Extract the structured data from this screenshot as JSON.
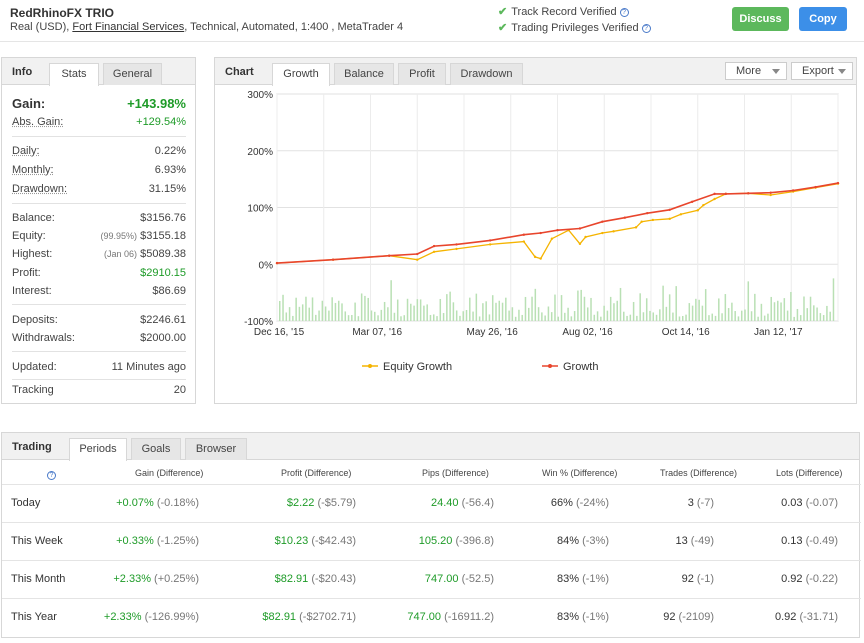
{
  "header": {
    "account_name": "RedRhinoFX TRIO",
    "account_type": "Real (USD),",
    "broker": "Fort Financial Services",
    "account_meta": ", Technical, Automated, 1:400 , MetaTrader 4",
    "verif_track": "Track Record Verified",
    "verif_privileges": "Trading Privileges Verified",
    "discuss_label": "Discuss",
    "copy_label": "Copy"
  },
  "info": {
    "title": "Info",
    "tabs": [
      "Stats",
      "General"
    ],
    "gain_label": "Gain:",
    "gain_value": "+143.98%",
    "abs_gain_label": "Abs. Gain:",
    "abs_gain_value": "+129.54%",
    "daily_label": "Daily:",
    "daily_value": "0.22%",
    "monthly_label": "Monthly:",
    "monthly_value": "6.93%",
    "drawdown_label": "Drawdown:",
    "drawdown_value": "31.15%",
    "balance_label": "Balance:",
    "balance_value": "$3156.76",
    "equity_label": "Equity:",
    "equity_note": "(99.95%)",
    "equity_value": "$3155.18",
    "highest_label": "Highest:",
    "highest_note": "(Jan 06)",
    "highest_value": "$5089.38",
    "profit_label": "Profit:",
    "profit_value": "$2910.15",
    "interest_label": "Interest:",
    "interest_value": "$86.69",
    "deposits_label": "Deposits:",
    "deposits_value": "$2246.61",
    "withdrawals_label": "Withdrawals:",
    "withdrawals_value": "$2000.00",
    "updated_label": "Updated:",
    "updated_value": "11 Minutes ago",
    "tracking_label": "Tracking",
    "tracking_value": "20"
  },
  "chart_panel": {
    "title": "Chart",
    "tabs": [
      "Growth",
      "Balance",
      "Profit",
      "Drawdown"
    ],
    "more_label": "More",
    "export_label": "Export"
  },
  "chart_data": {
    "type": "line",
    "ylim": [
      -100,
      300
    ],
    "yticks": [
      "300%",
      "200%",
      "100%",
      "0%",
      "-100%"
    ],
    "ytick_values": [
      300,
      200,
      100,
      0,
      -100
    ],
    "xticks": [
      "Dec 16, '15",
      "Mar 07, '16",
      "May 26, '16",
      "Aug 02, '16",
      "Oct 14, '16",
      "Jan 12, '17"
    ],
    "grid": true,
    "legend_placement": "bottom",
    "series": [
      {
        "name": "Equity Growth",
        "color": "#f5b400",
        "points": [
          [
            0,
            2
          ],
          [
            10,
            8
          ],
          [
            20,
            15
          ],
          [
            25,
            8
          ],
          [
            28,
            22
          ],
          [
            32,
            27
          ],
          [
            38,
            35
          ],
          [
            44,
            40
          ],
          [
            46,
            13
          ],
          [
            47,
            10
          ],
          [
            49,
            45
          ],
          [
            52,
            60
          ],
          [
            54,
            36
          ],
          [
            55,
            48
          ],
          [
            58,
            55
          ],
          [
            60,
            58
          ],
          [
            64,
            65
          ],
          [
            65,
            75
          ],
          [
            67,
            78
          ],
          [
            70,
            80
          ],
          [
            72,
            88
          ],
          [
            75,
            95
          ],
          [
            76,
            104
          ],
          [
            78,
            115
          ],
          [
            80,
            124
          ],
          [
            84,
            125
          ],
          [
            88,
            122
          ],
          [
            92,
            128
          ],
          [
            96,
            135
          ],
          [
            100,
            142
          ]
        ]
      },
      {
        "name": "Growth",
        "color": "#e8452c",
        "points": [
          [
            0,
            2
          ],
          [
            10,
            8
          ],
          [
            20,
            15
          ],
          [
            25,
            18
          ],
          [
            28,
            32
          ],
          [
            32,
            35
          ],
          [
            38,
            42
          ],
          [
            44,
            52
          ],
          [
            47,
            55
          ],
          [
            50,
            60
          ],
          [
            54,
            63
          ],
          [
            58,
            75
          ],
          [
            62,
            82
          ],
          [
            66,
            90
          ],
          [
            70,
            96
          ],
          [
            74,
            110
          ],
          [
            78,
            124
          ],
          [
            80,
            124
          ],
          [
            84,
            125
          ],
          [
            88,
            126
          ],
          [
            92,
            130
          ],
          [
            96,
            136
          ],
          [
            100,
            143
          ]
        ]
      }
    ]
  },
  "trading": {
    "title": "Trading",
    "tabs": [
      "Periods",
      "Goals",
      "Browser"
    ],
    "columns": [
      "Gain (Difference)",
      "Profit (Difference)",
      "Pips (Difference)",
      "Win % (Difference)",
      "Trades (Difference)",
      "Lots (Difference)"
    ],
    "rows": [
      {
        "period": "Today",
        "gain": "+0.07%",
        "gain_diff": "(-0.18%)",
        "profit": "$2.22",
        "profit_diff": "(-$5.79)",
        "pips": "24.40",
        "pips_diff": "(-56.4)",
        "win": "66%",
        "win_diff": "(-24%)",
        "trades": "3",
        "trades_diff": "(-7)",
        "lots": "0.03",
        "lots_diff": "(-0.07)"
      },
      {
        "period": "This Week",
        "gain": "+0.33%",
        "gain_diff": "(-1.25%)",
        "profit": "$10.23",
        "profit_diff": "(-$42.43)",
        "pips": "105.20",
        "pips_diff": "(-396.8)",
        "win": "84%",
        "win_diff": "(-3%)",
        "trades": "13",
        "trades_diff": "(-49)",
        "lots": "0.13",
        "lots_diff": "(-0.49)"
      },
      {
        "period": "This Month",
        "gain": "+2.33%",
        "gain_diff": "(+0.25%)",
        "profit": "$82.91",
        "profit_diff": "(-$20.43)",
        "pips": "747.00",
        "pips_diff": "(-52.5)",
        "win": "83%",
        "win_diff": "(-1%)",
        "trades": "92",
        "trades_diff": "(-1)",
        "lots": "0.92",
        "lots_diff": "(-0.22)"
      },
      {
        "period": "This Year",
        "gain": "+2.33%",
        "gain_diff": "(-126.99%)",
        "profit": "$82.91",
        "profit_diff": "(-$2702.71)",
        "pips": "747.00",
        "pips_diff": "(-16911.2)",
        "win": "83%",
        "win_diff": "(-1%)",
        "trades": "92",
        "trades_diff": "(-2109)",
        "lots": "0.92",
        "lots_diff": "(-31.71)"
      }
    ]
  },
  "colors": {
    "green": "#1e9b28",
    "discuss": "#5cb85c",
    "copy": "#3c8fe8",
    "growth_line": "#e8452c",
    "equity_line": "#f5b400",
    "volume_bars": "#b9e0b4"
  }
}
